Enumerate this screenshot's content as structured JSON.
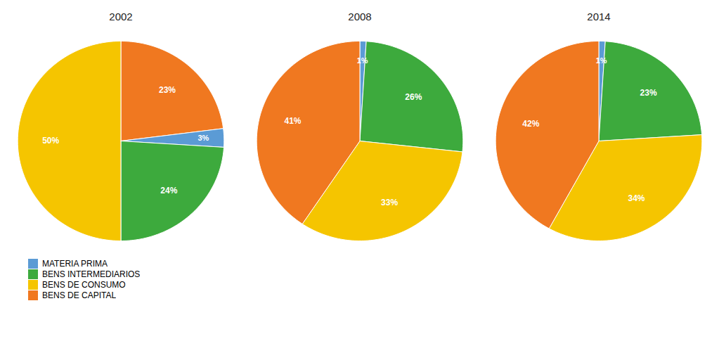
{
  "chart_data": [
    {
      "type": "pie",
      "title": "2002",
      "categories": [
        "BENS DE CAPITAL",
        "MATERIA PRIMA",
        "BENS INTERMEDIARIOS",
        "BENS DE CONSUMO"
      ],
      "values": [
        23,
        3,
        24,
        50
      ],
      "value_labels": [
        "23%",
        "3%",
        "24%",
        "50%"
      ],
      "colors": [
        "#f07820",
        "#5b9bd5",
        "#3daa3d",
        "#f5c500"
      ],
      "data_labels": true,
      "legend": "lower left"
    },
    {
      "type": "pie",
      "title": "2008",
      "categories": [
        "MATERIA PRIMA",
        "BENS INTERMEDIARIOS",
        "BENS DE CONSUMO",
        "BENS DE CAPITAL"
      ],
      "values": [
        1,
        26,
        33,
        41
      ],
      "value_labels": [
        "1%",
        "26%",
        "33%",
        "41%"
      ],
      "colors": [
        "#5b9bd5",
        "#3daa3d",
        "#f5c500",
        "#f07820"
      ],
      "data_labels": true,
      "legend": "lower left"
    },
    {
      "type": "pie",
      "title": "2014",
      "categories": [
        "MATERIA PRIMA",
        "BENS INTERMEDIARIOS",
        "BENS DE CONSUMO",
        "BENS DE CAPITAL"
      ],
      "values": [
        1,
        23,
        34,
        42
      ],
      "value_labels": [
        "1%",
        "23%",
        "34%",
        "42%"
      ],
      "colors": [
        "#5b9bd5",
        "#3daa3d",
        "#f5c500",
        "#f07820"
      ],
      "data_labels": true,
      "legend": "lower left"
    }
  ]
}
